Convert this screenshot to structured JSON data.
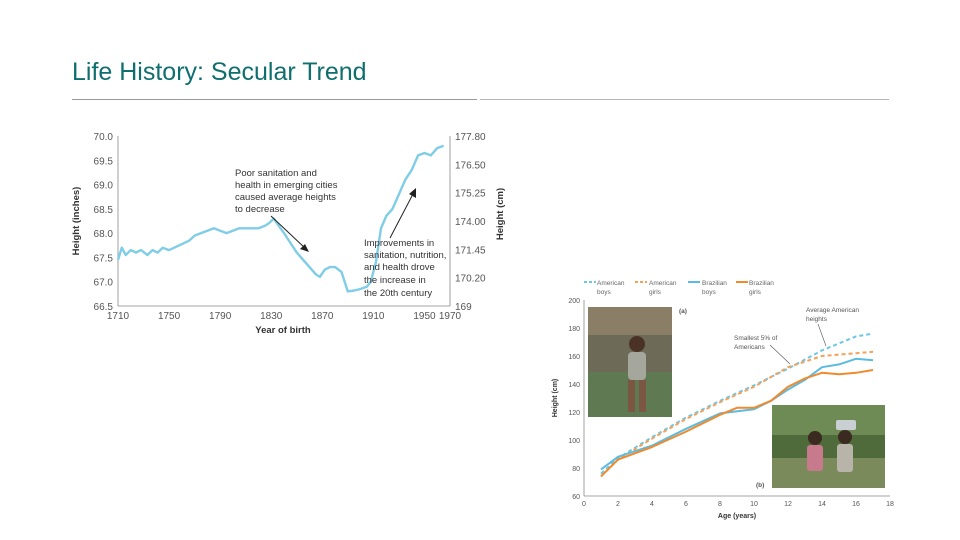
{
  "slide": {
    "title": "Life History: Secular Trend"
  },
  "colors": {
    "title": "#0f6e6e",
    "line_main": "#7fcde6",
    "american_boys": "#6cc7e3",
    "american_girls": "#f4a259",
    "brazilian_boys": "#5bbbe0",
    "brazilian_girls": "#f08a2e"
  },
  "photos": {
    "left": "photo-child-standing",
    "right": "photo-girls-carrying-bucket"
  },
  "chart_data": [
    {
      "type": "line",
      "title": "",
      "xlabel": "Year of birth",
      "ylabel": "Height (inches)",
      "ylabel_right": "Height (cm)",
      "xlim": [
        1710,
        1970
      ],
      "ylim": [
        66.5,
        70.0
      ],
      "x_ticks": [
        "1710",
        "1750",
        "1790",
        "1830",
        "1870",
        "1910",
        "1950",
        "1970"
      ],
      "y_ticks": [
        "70.0",
        "69.5",
        "69.0",
        "68.5",
        "68.0",
        "67.5",
        "67.0",
        "66.5"
      ],
      "y_ticks_right": [
        "177.80",
        "176.50",
        "175.25",
        "174.00",
        "171.45",
        "170.20",
        "169"
      ],
      "series": [
        {
          "x": [
            1710,
            1713,
            1716,
            1720,
            1724,
            1728,
            1733,
            1737,
            1741,
            1745,
            1750,
            1754,
            1758,
            1762,
            1766,
            1770,
            1775,
            1780,
            1785,
            1790,
            1795,
            1800,
            1805,
            1810,
            1815,
            1820,
            1825,
            1828,
            1832,
            1836,
            1840,
            1845,
            1850,
            1855,
            1860,
            1865,
            1868,
            1872,
            1876,
            1880,
            1885,
            1890,
            1895,
            1900,
            1905,
            1908,
            1912,
            1916,
            1920,
            1925,
            1930,
            1935,
            1940,
            1945,
            1950,
            1955,
            1960,
            1965
          ],
          "y": [
            67.45,
            67.7,
            67.55,
            67.65,
            67.6,
            67.65,
            67.55,
            67.65,
            67.6,
            67.7,
            67.65,
            67.7,
            67.75,
            67.8,
            67.85,
            67.95,
            68.0,
            68.05,
            68.1,
            68.05,
            68.0,
            68.05,
            68.1,
            68.1,
            68.1,
            68.1,
            68.15,
            68.2,
            68.3,
            68.15,
            68.0,
            67.8,
            67.6,
            67.45,
            67.3,
            67.15,
            67.1,
            67.25,
            67.3,
            67.3,
            67.2,
            66.8,
            66.82,
            66.85,
            66.9,
            67.0,
            67.4,
            68.1,
            68.35,
            68.5,
            68.8,
            69.1,
            69.3,
            69.6,
            69.65,
            69.6,
            69.75,
            69.8
          ]
        }
      ],
      "annotations": [
        {
          "lines": [
            "Poor sanitation and",
            "health in emerging cities",
            "caused average heights",
            "to decrease"
          ]
        },
        {
          "lines": [
            "Improvements in",
            "sanitation, nutrition,",
            "and health drove",
            "the increase in",
            "the 20th century"
          ]
        }
      ]
    },
    {
      "type": "line",
      "title": "",
      "xlabel": "Age (years)",
      "ylabel": "Height (cm)",
      "xlim": [
        0,
        18
      ],
      "ylim": [
        60,
        200
      ],
      "x_ticks": [
        "0",
        "2",
        "4",
        "6",
        "8",
        "10",
        "12",
        "14",
        "16",
        "18"
      ],
      "y_ticks": [
        "200",
        "180",
        "160",
        "140",
        "120",
        "100",
        "80",
        "60"
      ],
      "panel_labels": [
        "(a)",
        "(b)"
      ],
      "series": [
        {
          "name": "American boys",
          "style": "dashed",
          "x": [
            1,
            2,
            4,
            6,
            8,
            10,
            12,
            14,
            16,
            17
          ],
          "y": [
            76,
            87,
            102,
            116,
            128,
            139,
            151,
            164,
            174,
            176
          ]
        },
        {
          "name": "American girls",
          "style": "dashed",
          "x": [
            1,
            2,
            4,
            6,
            8,
            10,
            12,
            14,
            16,
            17
          ],
          "y": [
            74,
            86,
            101,
            115,
            127,
            138,
            152,
            160,
            162,
            163
          ]
        },
        {
          "name": "Brazilian boys",
          "style": "solid",
          "x": [
            1,
            2,
            4,
            6,
            8,
            10,
            11,
            12,
            13,
            14,
            15,
            16,
            17
          ],
          "y": [
            79,
            88,
            96,
            108,
            119,
            122,
            128,
            136,
            143,
            152,
            154,
            158,
            157
          ]
        },
        {
          "name": "Brazilian girls",
          "style": "solid",
          "x": [
            1,
            2,
            4,
            6,
            8,
            9,
            10,
            11,
            12,
            13,
            14,
            15,
            16,
            17
          ],
          "y": [
            74,
            86,
            95,
            106,
            118,
            123,
            123,
            128,
            138,
            144,
            148,
            147,
            148,
            150
          ]
        }
      ],
      "annotations": [
        {
          "lines": [
            "Average American",
            "heights"
          ]
        },
        {
          "lines": [
            "Smallest 5% of",
            "Americans"
          ]
        }
      ]
    }
  ]
}
